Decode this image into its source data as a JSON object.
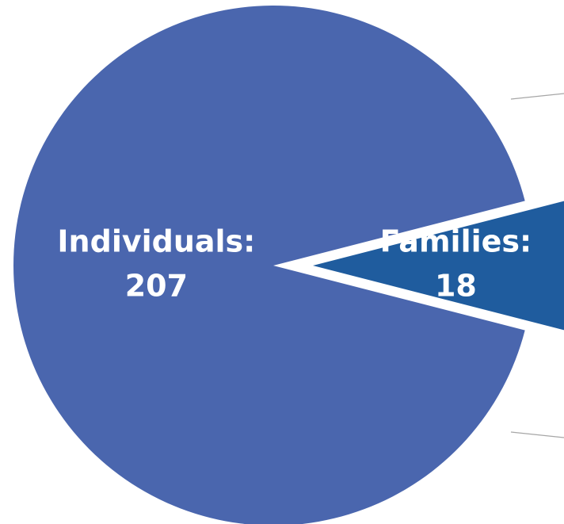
{
  "chart_data": {
    "type": "pie",
    "categories": [
      "Individuals:",
      "Families:"
    ],
    "values": [
      207,
      18
    ],
    "colors": [
      "#4a66ae",
      "#1f5c9e"
    ]
  }
}
